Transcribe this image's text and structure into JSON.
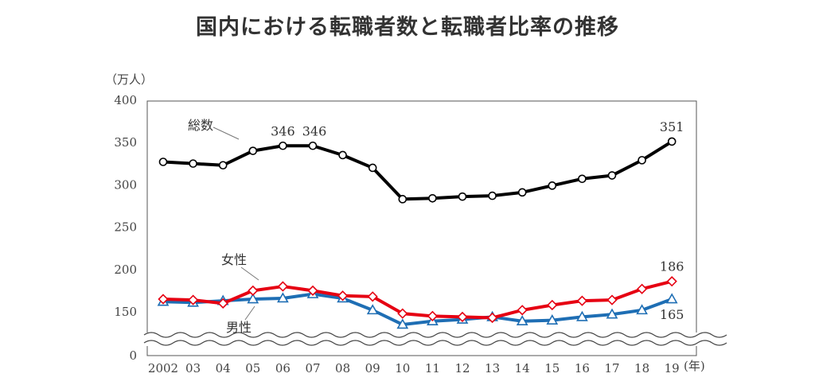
{
  "title": "国内における転職者数と転職者比率の推移",
  "chart_data": {
    "type": "line",
    "ylabel": "（万人）",
    "xlabel": "(年)",
    "categories": [
      "2002",
      "03",
      "04",
      "05",
      "06",
      "07",
      "08",
      "09",
      "10",
      "11",
      "12",
      "13",
      "14",
      "15",
      "16",
      "17",
      "18",
      "19"
    ],
    "y_ticks": [
      "0",
      "150",
      "200",
      "250",
      "300",
      "350",
      "400"
    ],
    "y_axis_break": [
      0,
      130
    ],
    "ylim": [
      130,
      400
    ],
    "grid": false,
    "series": [
      {
        "name": "総数",
        "color": "#000000",
        "marker": "circle",
        "values": [
          327,
          325,
          323,
          340,
          346,
          346,
          335,
          320,
          283,
          284,
          286,
          287,
          291,
          299,
          307,
          311,
          329,
          351
        ]
      },
      {
        "name": "女性",
        "color": "#e60012",
        "marker": "diamond",
        "values": [
          165,
          164,
          160,
          175,
          180,
          175,
          169,
          168,
          148,
          145,
          144,
          143,
          152,
          158,
          163,
          164,
          177,
          186
        ]
      },
      {
        "name": "男性",
        "color": "#1e6eb4",
        "marker": "triangle",
        "values": [
          162,
          161,
          163,
          165,
          166,
          171,
          166,
          152,
          135,
          139,
          141,
          144,
          139,
          140,
          144,
          147,
          152,
          165
        ]
      }
    ],
    "data_labels": [
      {
        "series": "総数",
        "index": 4,
        "text": "346"
      },
      {
        "series": "総数",
        "index": 5,
        "text": "346"
      },
      {
        "series": "総数",
        "index": 17,
        "text": "351"
      },
      {
        "series": "女性",
        "index": 17,
        "text": "186"
      },
      {
        "series": "男性",
        "index": 17,
        "text": "165"
      }
    ]
  }
}
